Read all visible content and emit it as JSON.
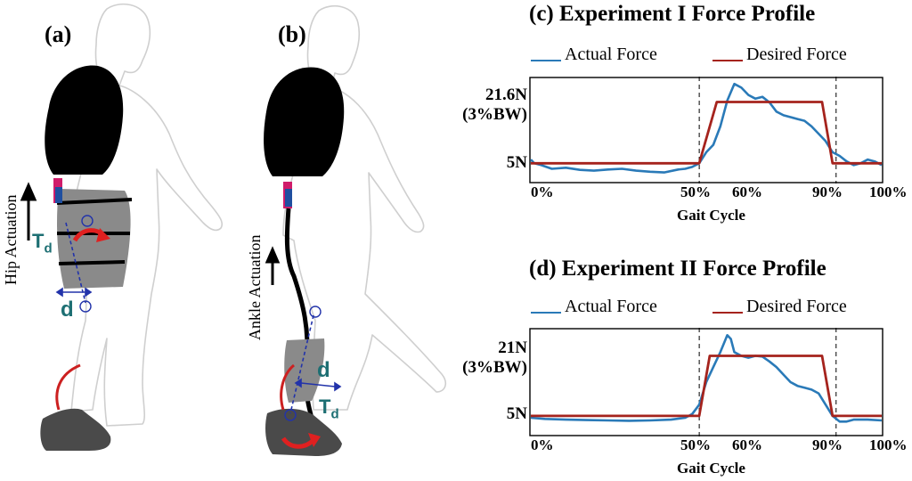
{
  "panels": {
    "a": {
      "letter": "(a)",
      "actuation_label": "Hip Actuation",
      "torque_label": "T",
      "torque_sub": "d",
      "distance_label": "d"
    },
    "b": {
      "letter": "(b)",
      "actuation_label": "Ankle Actuation",
      "torque_label": "T",
      "torque_sub": "d",
      "distance_label": "d"
    }
  },
  "colors": {
    "actual": "#2a7ab8",
    "desired": "#a5231d",
    "text_teal": "#1d6f73",
    "arrow_red": "#e02020",
    "dashed_blue": "#2233aa"
  },
  "chart_data": [
    {
      "type": "line",
      "title": "(c) Experiment I Force Profile",
      "legend": [
        "Actual Force",
        "Desired Force"
      ],
      "legend_placement": "top",
      "x_ticks": [
        "0%",
        "50%",
        "60%",
        "90%",
        "100%"
      ],
      "xlabel": "Gait Cycle",
      "y_ticks": [
        "21.6N\n(3%BW)",
        "5N"
      ],
      "y_tick_lines": [
        [
          "21.6N",
          "(3%BW)"
        ],
        [
          "5N"
        ]
      ],
      "xlim": [
        0,
        100
      ],
      "ylim": [
        0,
        28
      ],
      "grid": false,
      "vlines_dashed": [
        48,
        87
      ],
      "series": [
        {
          "name": "Actual Force",
          "x": [
            0,
            1,
            3,
            6,
            10,
            14,
            18,
            22,
            26,
            30,
            34,
            38,
            42,
            44,
            46,
            48,
            50,
            52,
            54,
            56,
            58,
            60,
            62,
            64,
            66,
            68,
            70,
            72,
            74,
            76,
            78,
            80,
            82,
            84,
            86,
            88,
            90,
            92,
            94,
            96,
            98,
            100
          ],
          "y": [
            6,
            5,
            4.5,
            3.5,
            3.8,
            3.2,
            3,
            3.3,
            3.5,
            3,
            2.7,
            2.5,
            3.3,
            3.5,
            4,
            5,
            8,
            10,
            15,
            22,
            26.5,
            25.5,
            23.5,
            22.5,
            23,
            21.5,
            19,
            18,
            17.5,
            17,
            16.5,
            15,
            13,
            11,
            8,
            7,
            5.5,
            4.5,
            5,
            6,
            5.5,
            4.5
          ]
        },
        {
          "name": "Desired Force",
          "x": [
            0,
            47,
            48,
            53,
            83,
            86,
            87,
            100
          ],
          "y": [
            5,
            5,
            5,
            21.6,
            21.6,
            5,
            5,
            5
          ]
        }
      ]
    },
    {
      "type": "line",
      "title": "(d) Experiment II Force Profile",
      "legend": [
        "Actual Force",
        "Desired Force"
      ],
      "legend_placement": "top",
      "x_ticks": [
        "0%",
        "50%",
        "60%",
        "90%",
        "100%"
      ],
      "xlabel": "Gait Cycle",
      "y_ticks": [
        "21N\n(3%BW)",
        "5N"
      ],
      "y_tick_lines": [
        [
          "21N",
          "(3%BW)"
        ],
        [
          "5N"
        ]
      ],
      "xlim": [
        0,
        100
      ],
      "ylim": [
        0,
        28
      ],
      "grid": false,
      "vlines_dashed": [
        48,
        87
      ],
      "series": [
        {
          "name": "Actual Force",
          "x": [
            0,
            4,
            10,
            16,
            22,
            28,
            34,
            40,
            44,
            46,
            48,
            50,
            52,
            54,
            56,
            57,
            58,
            60,
            62,
            64,
            66,
            68,
            70,
            72,
            74,
            76,
            78,
            80,
            82,
            84,
            86,
            88,
            90,
            92,
            94,
            96,
            100
          ],
          "y": [
            4.5,
            4.2,
            4,
            3.9,
            3.8,
            3.7,
            3.8,
            4,
            4.5,
            5.5,
            8,
            14,
            18,
            22,
            26.5,
            25.5,
            22,
            21,
            20.5,
            21,
            20.8,
            19.5,
            18,
            16,
            14,
            13,
            12.5,
            12,
            11,
            8,
            5,
            3.5,
            3.5,
            4,
            4,
            4,
            3.8
          ]
        },
        {
          "name": "Desired Force",
          "x": [
            0,
            47,
            48,
            51,
            83,
            86,
            87,
            100
          ],
          "y": [
            5,
            5,
            5,
            21,
            21,
            5,
            5,
            5
          ]
        }
      ]
    }
  ]
}
